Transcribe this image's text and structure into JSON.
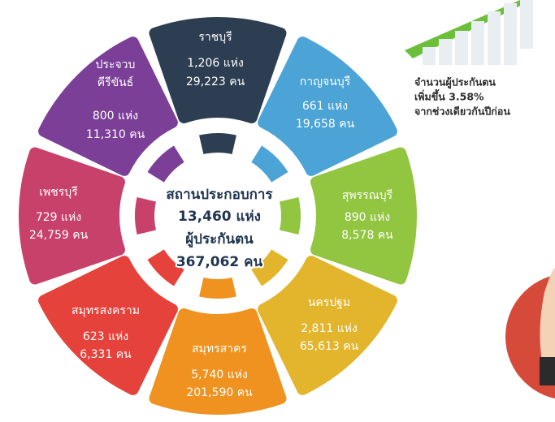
{
  "center": {
    "line1": "สถานประกอบการ",
    "line2": "13,460 แห่ง",
    "line3": "ผู้ประกันตน",
    "line4": "367,062 คน"
  },
  "regions": [
    {
      "name": "ราชบุรี",
      "establishments": "1,206 แห่ง",
      "insured": "29,223 คน",
      "color": "#2d3e52"
    },
    {
      "name": "กาญจนบุรี",
      "establishments": "661 แห่ง",
      "insured": "19,658 คน",
      "color": "#4ba3d6"
    },
    {
      "name": "สุพรรณบุรี",
      "establishments": "890 แห่ง",
      "insured": "8,578 คน",
      "color": "#92c540"
    },
    {
      "name": "นครปฐม",
      "establishments": "2,811 แห่ง",
      "insured": "65,613 คน",
      "color": "#e3b52c"
    },
    {
      "name": "สมุทรสาคร",
      "establishments": "5,740 แห่ง",
      "insured": "201,590 คน",
      "color": "#ef921f"
    },
    {
      "name": "สมุทรสงคราม",
      "establishments": "623 แห่ง",
      "insured": "6,331 คน",
      "color": "#e6423c"
    },
    {
      "name": "เพชรบุรี",
      "establishments": "729 แห่ง",
      "insured": "24,759 คน",
      "color": "#c7416b"
    },
    {
      "name": "ประจวบ\nคีรีขันธ์",
      "establishments": "800 แห่ง",
      "insured": "11,310 คน",
      "color": "#7b3f98"
    }
  ],
  "note": {
    "line1": "จำนวนผู้ประกันตน",
    "line2": "เพิ่มขึ้น 3.58%",
    "line3": "จากช่วงเดียวกันปีก่อน"
  }
}
